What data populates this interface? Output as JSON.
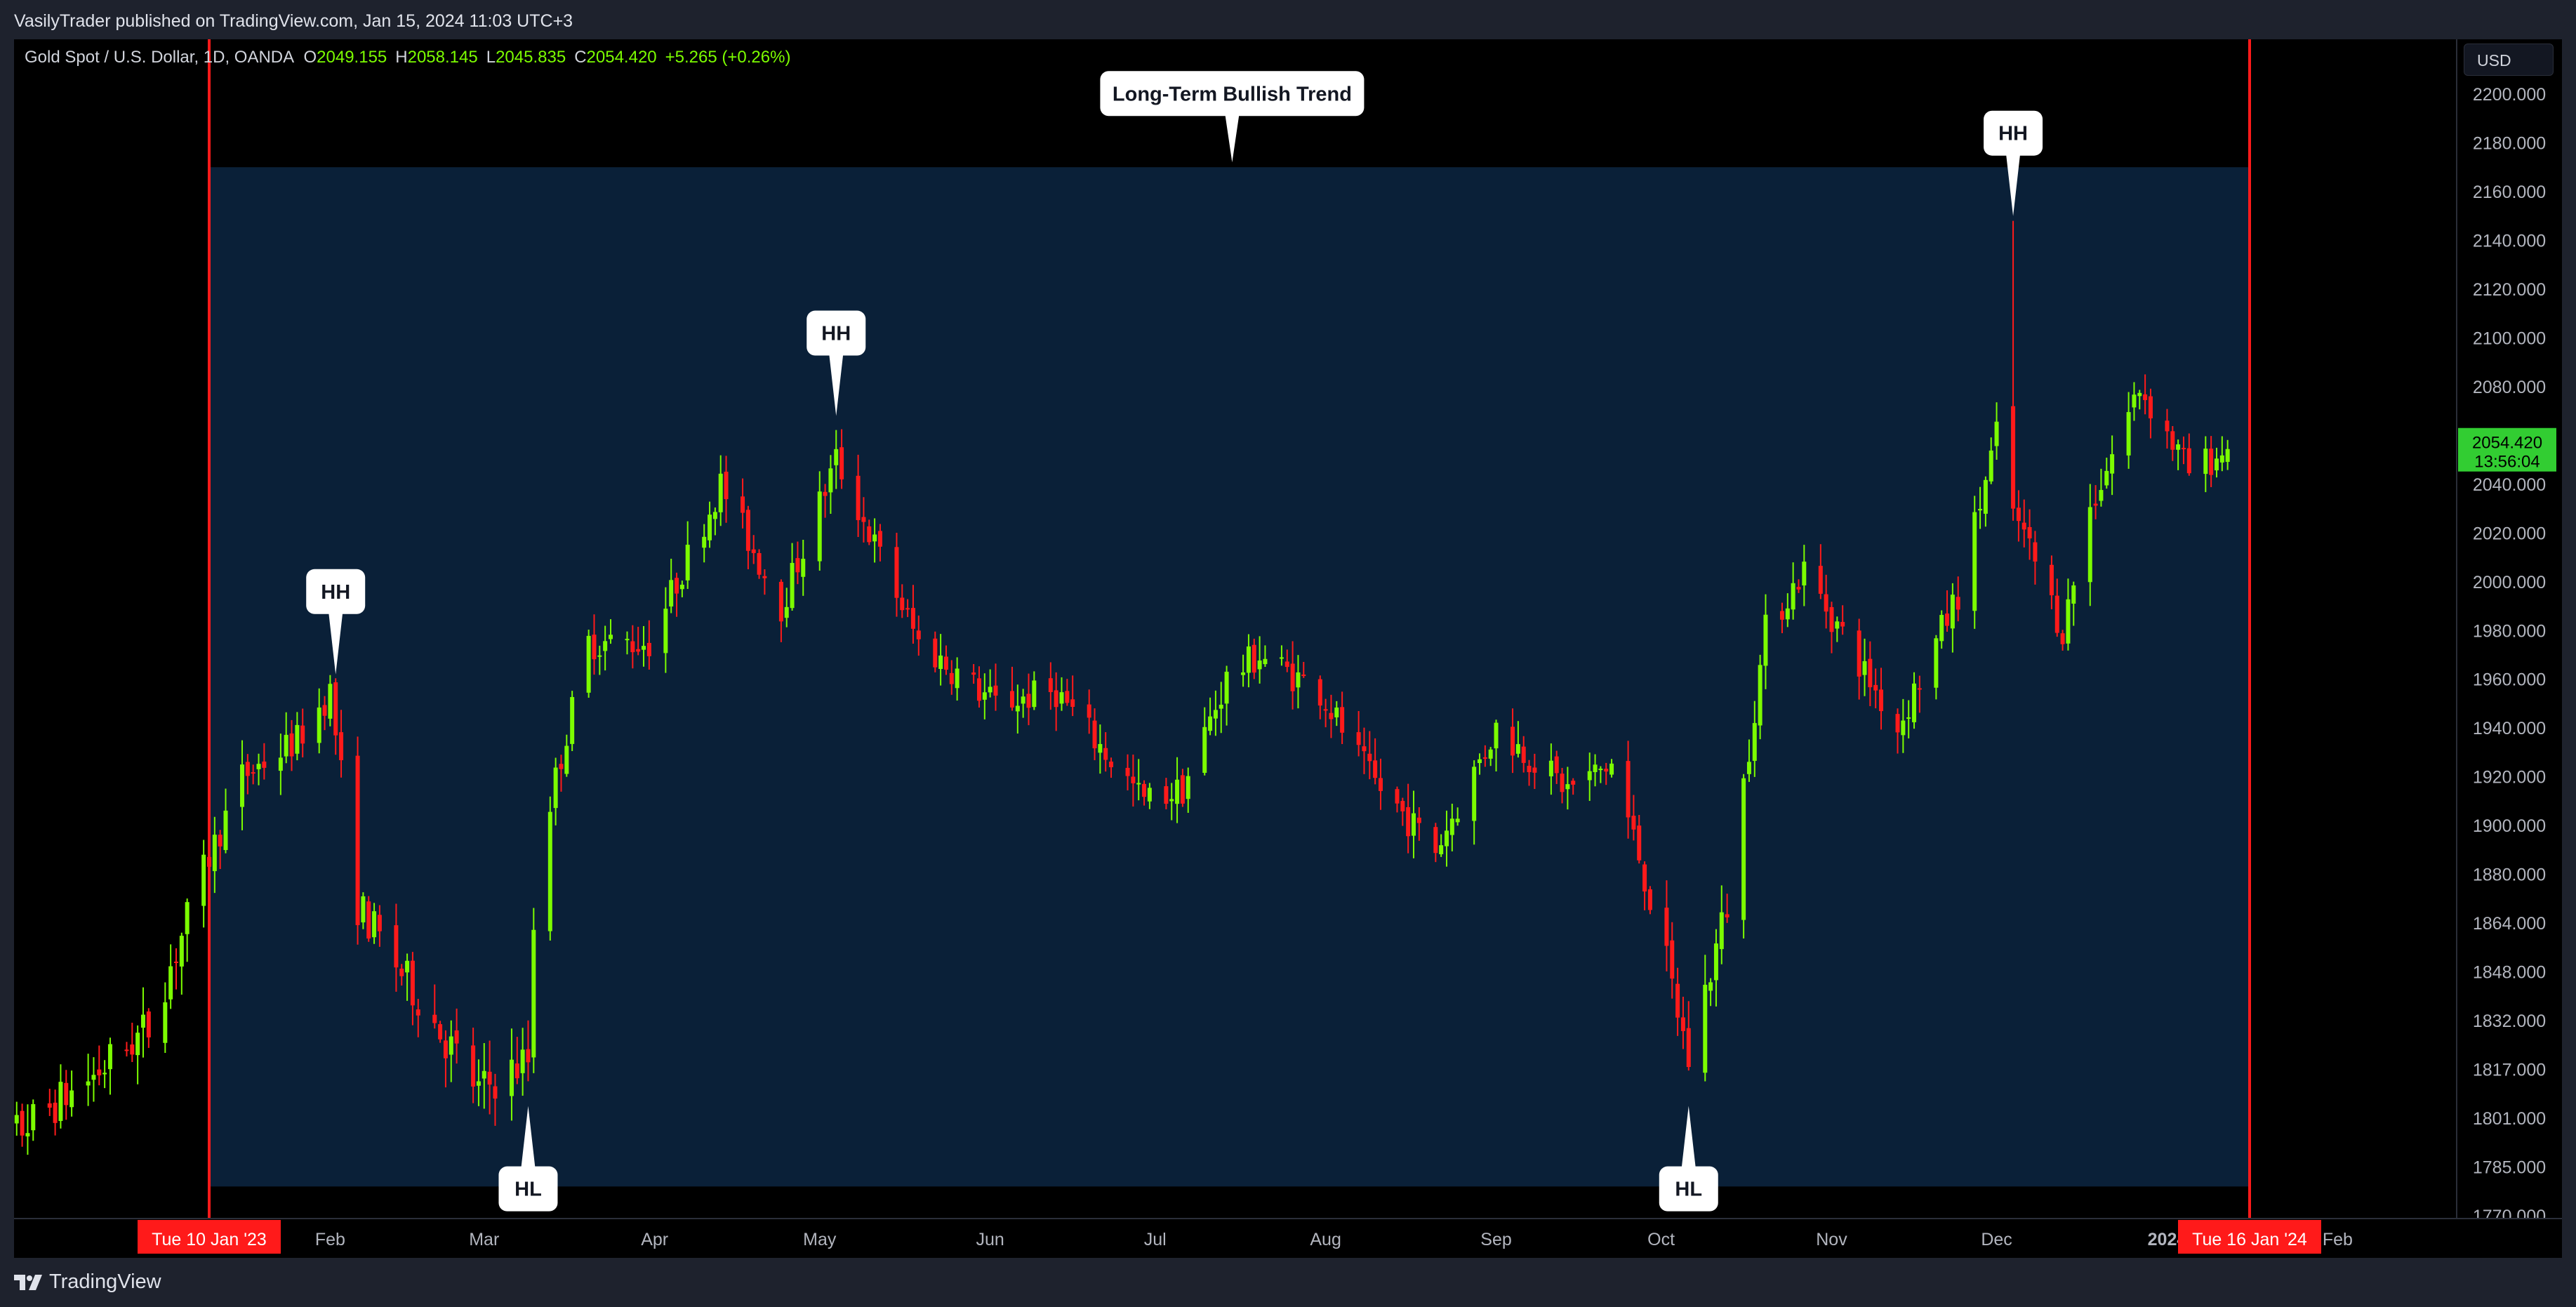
{
  "header": {
    "publish_text": "VasilyTrader published on TradingView.com, Jan 15, 2024 11:03 UTC+3"
  },
  "legend": {
    "symbol": "Gold Spot / U.S. Dollar, 1D, OANDA",
    "o_label": "O",
    "o_value": "2049.155",
    "h_label": "H",
    "h_value": "2058.145",
    "l_label": "L",
    "l_value": "2045.835",
    "c_label": "C",
    "c_value": "2054.420",
    "change": "+5.265 (+0.26%)"
  },
  "currency": "USD",
  "price_label": {
    "price": "2054.420",
    "countdown": "13:56:04"
  },
  "footer": {
    "brand": "TradingView",
    "logo_icon": "tradingview-logo-icon"
  },
  "colors": {
    "up": "#7cfc00",
    "down": "#ff1a1a",
    "range_fill": "#0a2038",
    "marker": "#ff1a1a"
  },
  "chart_data": {
    "type": "candlestick",
    "symbol": "XAUUSD",
    "interval": "1D",
    "y_ticks": [
      2200,
      2180,
      2160,
      2140,
      2120,
      2100,
      2080,
      2060,
      2040,
      2020,
      2000,
      1980,
      1960,
      1940,
      1920,
      1900,
      1880,
      1864,
      1848,
      1832,
      1817,
      1801,
      1785,
      1770
    ],
    "y_tick_labels": [
      "2200.000",
      "2180.000",
      "2160.000",
      "2140.000",
      "2120.000",
      "2100.000",
      "2080.000",
      "2060.000",
      "2040.000",
      "2020.000",
      "2000.000",
      "1980.000",
      "1960.000",
      "1940.000",
      "1920.000",
      "1900.000",
      "1880.000",
      "1864.000",
      "1848.000",
      "1832.000",
      "1817.000",
      "1801.000",
      "1785.000",
      "1770.000"
    ],
    "x_labels": [
      {
        "date": "2023-02-01",
        "text": "Feb"
      },
      {
        "date": "2023-03-01",
        "text": "Mar"
      },
      {
        "date": "2023-04-01",
        "text": "Apr"
      },
      {
        "date": "2023-05-01",
        "text": "May"
      },
      {
        "date": "2023-06-01",
        "text": "Jun"
      },
      {
        "date": "2023-07-01",
        "text": "Jul"
      },
      {
        "date": "2023-08-01",
        "text": "Aug"
      },
      {
        "date": "2023-09-01",
        "text": "Sep"
      },
      {
        "date": "2023-10-01",
        "text": "Oct"
      },
      {
        "date": "2023-11-01",
        "text": "Nov"
      },
      {
        "date": "2023-12-01",
        "text": "Dec"
      },
      {
        "date": "2024-01-01",
        "text": "2024"
      },
      {
        "date": "2024-02-01",
        "text": "Feb"
      }
    ],
    "range_markers": [
      {
        "date": "2023-01-10",
        "label": "Tue 10 Jan '23"
      },
      {
        "date": "2024-01-16",
        "label": "Tue 16 Jan '24"
      }
    ],
    "range_box": {
      "from": "2023-01-10",
      "to": "2024-01-16",
      "top": 2170,
      "bottom": 1779
    },
    "close_price": 2054.42,
    "anchor_points": [
      [
        "2022-11-25",
        1760
      ],
      [
        "2022-12-05",
        1795
      ],
      [
        "2022-12-20",
        1815
      ],
      [
        "2022-12-30",
        1830
      ],
      [
        "2023-01-06",
        1865
      ],
      [
        "2023-01-16",
        1920
      ],
      [
        "2023-01-26",
        1935
      ],
      [
        "2023-02-01",
        1955
      ],
      [
        "2023-02-06",
        1870
      ],
      [
        "2023-02-15",
        1845
      ],
      [
        "2023-02-28",
        1810
      ],
      [
        "2023-03-09",
        1820
      ],
      [
        "2023-03-10",
        1865
      ],
      [
        "2023-03-13",
        1910
      ],
      [
        "2023-03-20",
        1975
      ],
      [
        "2023-03-31",
        1975
      ],
      [
        "2023-04-13",
        2040
      ],
      [
        "2023-04-24",
        1990
      ],
      [
        "2023-05-04",
        2050
      ],
      [
        "2023-05-12",
        2010
      ],
      [
        "2023-05-19",
        1975
      ],
      [
        "2023-06-02",
        1950
      ],
      [
        "2023-06-13",
        1955
      ],
      [
        "2023-06-29",
        1910
      ],
      [
        "2023-07-06",
        1915
      ],
      [
        "2023-07-14",
        1960
      ],
      [
        "2023-07-20",
        1970
      ],
      [
        "2023-07-31",
        1955
      ],
      [
        "2023-08-09",
        1920
      ],
      [
        "2023-08-21",
        1890
      ],
      [
        "2023-09-01",
        1940
      ],
      [
        "2023-09-14",
        1915
      ],
      [
        "2023-09-22",
        1925
      ],
      [
        "2023-10-06",
        1820
      ],
      [
        "2023-10-13",
        1870
      ],
      [
        "2023-10-20",
        1980
      ],
      [
        "2023-10-27",
        2005
      ],
      [
        "2023-11-13",
        1940
      ],
      [
        "2023-11-24",
        1995
      ],
      [
        "2023-12-01",
        2060
      ],
      [
        "2023-12-04",
        2030
      ],
      [
        "2023-12-13",
        1980
      ],
      [
        "2023-12-18",
        2030
      ],
      [
        "2023-12-27",
        2080
      ],
      [
        "2024-01-05",
        2045
      ],
      [
        "2024-01-12",
        2054
      ]
    ],
    "special_bars": [
      {
        "date": "2023-12-04",
        "open": 2072,
        "high": 2148,
        "low": 2025,
        "close": 2030
      }
    ],
    "annotations": [
      {
        "text": "Long-Term Bullish Trend",
        "date": "2023-07-15",
        "price": 2172,
        "pointer": "down"
      },
      {
        "text": "HH",
        "date": "2023-02-02",
        "price": 1962,
        "pointer": "down"
      },
      {
        "text": "HH",
        "date": "2023-05-04",
        "price": 2068,
        "pointer": "down"
      },
      {
        "text": "HH",
        "date": "2023-12-04",
        "price": 2150,
        "pointer": "down"
      },
      {
        "text": "HL",
        "date": "2023-03-09",
        "price": 1805,
        "pointer": "up"
      },
      {
        "text": "HL",
        "date": "2023-10-06",
        "price": 1805,
        "pointer": "up"
      }
    ]
  }
}
